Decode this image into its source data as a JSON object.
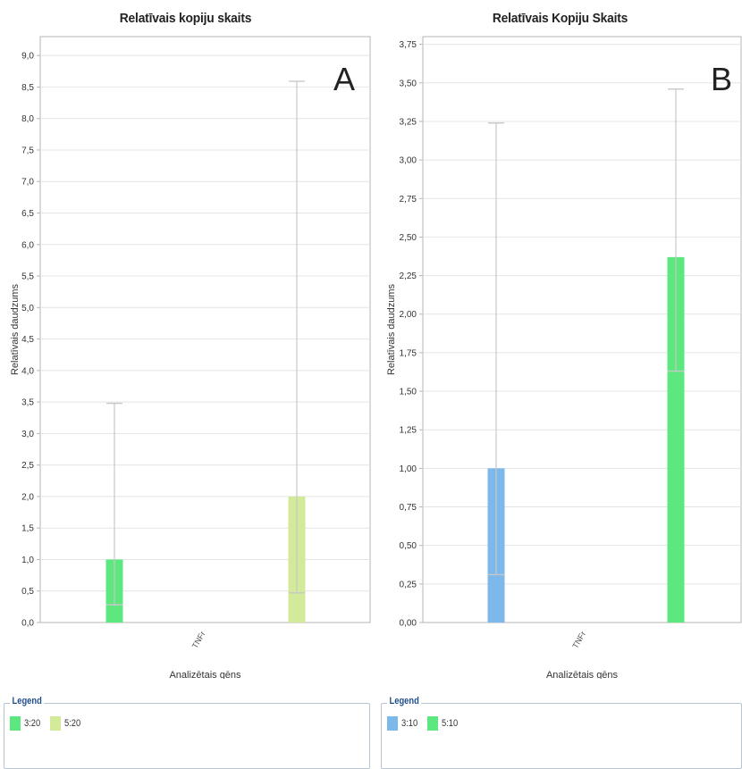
{
  "colors": {
    "green": "#5ce87e",
    "yellow_green": "#d2ea9a",
    "blue": "#7db8ea",
    "gridline": "#e4e4e4",
    "errorbar": "#c8c8c8",
    "axis": "#b5b5b5",
    "legend_title": "#1f4e8c"
  },
  "chart_data": [
    {
      "panel_letter": "A",
      "type": "bar",
      "title": "Relatīvais kopiju skaits",
      "xlabel": "Analizētais gēns",
      "ylabel": "Relatīvais daudzums",
      "categories": [
        "TNFr"
      ],
      "ylim": [
        0,
        9.3
      ],
      "yticks": [
        "0,0",
        "0,5",
        "1,0",
        "1,5",
        "2,0",
        "2,5",
        "3,0",
        "3,5",
        "4,0",
        "4,5",
        "5,0",
        "5,5",
        "6,0",
        "6,5",
        "7,0",
        "7,5",
        "8,0",
        "8,5",
        "9,0"
      ],
      "grid": true,
      "legend_title": "Legend",
      "legend_position": "bottom",
      "series": [
        {
          "name": "3:20",
          "color": "green",
          "value": 1.0,
          "error_low": 0.28,
          "error_high": 3.48
        },
        {
          "name": "5:20",
          "color": "yellow_green",
          "value": 2.0,
          "error_low": 0.47,
          "error_high": 8.59
        }
      ]
    },
    {
      "panel_letter": "B",
      "type": "bar",
      "title": "Relatīvais Kopiju Skaits",
      "xlabel": "Analizētais gēns",
      "ylabel": "Relatīvais daudzums",
      "categories": [
        "TNFr"
      ],
      "ylim": [
        0,
        3.8
      ],
      "yticks": [
        "0,00",
        "0,25",
        "0,50",
        "0,75",
        "1,00",
        "1,25",
        "1,50",
        "1,75",
        "2,00",
        "2,25",
        "2,50",
        "2,75",
        "3,00",
        "3,25",
        "3,50",
        "3,75"
      ],
      "grid": true,
      "legend_title": "Legend",
      "legend_position": "bottom",
      "series": [
        {
          "name": "3:10",
          "color": "blue",
          "value": 1.0,
          "error_low": 0.31,
          "error_high": 3.24
        },
        {
          "name": "5:10",
          "color": "green",
          "value": 2.37,
          "error_low": 1.63,
          "error_high": 3.46
        }
      ]
    }
  ]
}
